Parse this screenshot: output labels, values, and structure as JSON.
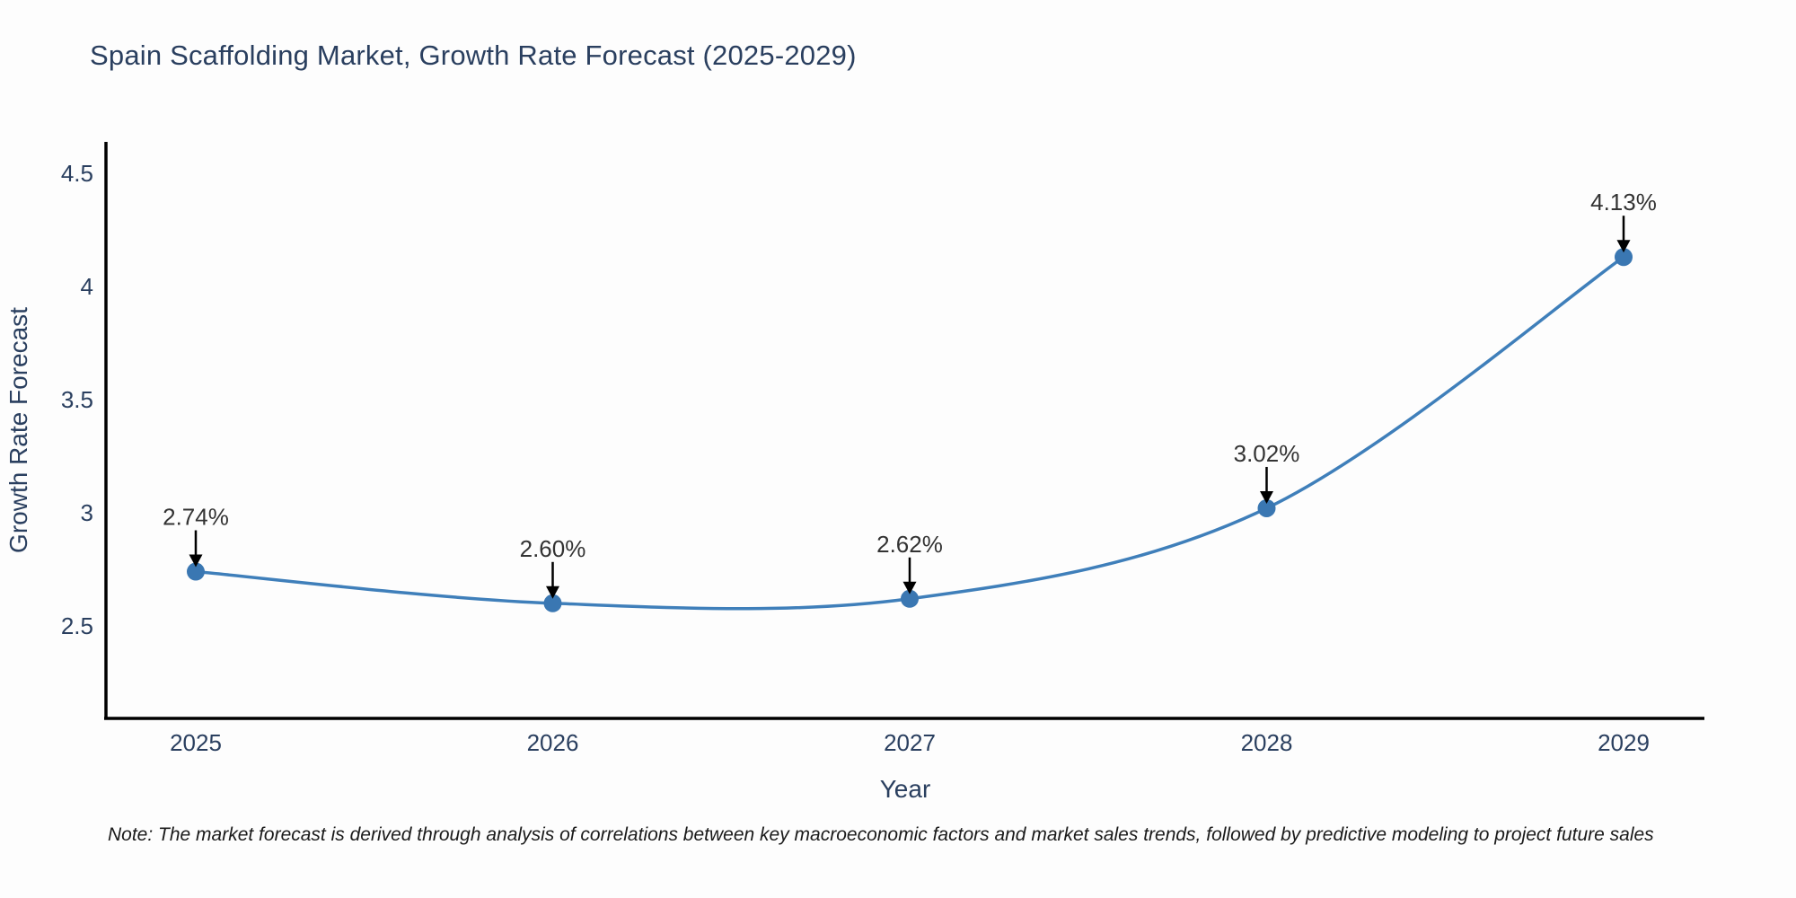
{
  "page": {
    "title": "Spain Scaffolding Market, Growth Rate Forecast (2025-2029)",
    "note": "Note: The market forecast is derived through analysis of correlations between key macroeconomic factors and market sales trends, followed by predictive modeling to project future sales"
  },
  "chart_data": {
    "type": "line",
    "title": "Spain Scaffolding Market, Growth Rate Forecast (2025-2029)",
    "xlabel": "Year",
    "ylabel": "Growth Rate Forecast",
    "categories": [
      "2025",
      "2026",
      "2027",
      "2028",
      "2029"
    ],
    "values": [
      2.74,
      2.6,
      2.62,
      3.02,
      4.13
    ],
    "point_labels": [
      "2.74%",
      "2.60%",
      "2.62%",
      "3.02%",
      "4.13%"
    ],
    "yticks": [
      2.5,
      3,
      3.5,
      4,
      4.5
    ],
    "ytick_labels": [
      "2.5",
      "3",
      "3.5",
      "4",
      "4.5"
    ],
    "ylim": [
      2.09,
      4.64
    ],
    "line_shape": "spline",
    "grid": false,
    "legend": "none",
    "annotation_arrows": true,
    "colors": {
      "line": "#3f7fba",
      "marker": "#3a77b2",
      "axis": "#000000",
      "tick_text": "#2a3f5f",
      "axis_title_text": "#2a3f5f",
      "annotation_text": "#333333",
      "arrow": "#000000"
    }
  }
}
